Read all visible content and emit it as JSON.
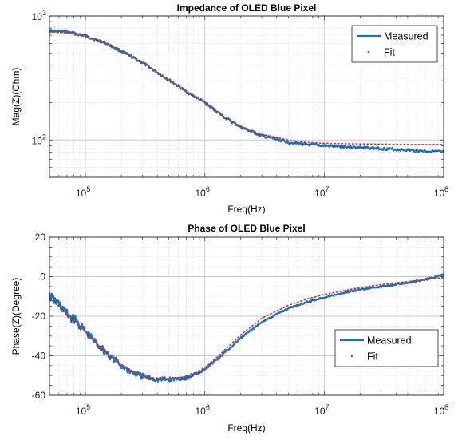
{
  "chart_data": [
    {
      "type": "line",
      "title": "Impedance of OLED Blue Pixel",
      "xlabel": "Freq(Hz)",
      "ylabel": "Mag(Z)(Ohm)",
      "xscale": "log",
      "yscale": "log",
      "xlim": [
        50000,
        100000000
      ],
      "ylim": [
        50,
        1000
      ],
      "grid": true,
      "legend_position": "top-right",
      "x_ticks": [
        {
          "value": 100000,
          "base": "10",
          "exp": "5"
        },
        {
          "value": 1000000,
          "base": "10",
          "exp": "6"
        },
        {
          "value": 10000000,
          "base": "10",
          "exp": "7"
        },
        {
          "value": 100000000,
          "base": "10",
          "exp": "8"
        }
      ],
      "y_ticks": [
        {
          "value": 100,
          "base": "10",
          "exp": "2"
        },
        {
          "value": 1000,
          "base": "10",
          "exp": "3"
        }
      ],
      "series": [
        {
          "name": "Measured",
          "style": "solid",
          "color": "#1f6fb4",
          "x": [
            50000,
            70000,
            100000,
            150000,
            200000,
            300000,
            400000,
            500000,
            700000,
            1000000,
            1500000,
            2000000,
            3000000,
            5000000,
            7000000,
            10000000,
            20000000,
            50000000,
            100000000
          ],
          "y": [
            760,
            745,
            690,
            600,
            520,
            420,
            350,
            305,
            245,
            200,
            150,
            127,
            108,
            96,
            92,
            90,
            87,
            83,
            80
          ]
        },
        {
          "name": "Fit",
          "style": "dotted",
          "color": "#e8271e",
          "x": [
            50000,
            70000,
            100000,
            150000,
            200000,
            300000,
            400000,
            500000,
            700000,
            1000000,
            1500000,
            2000000,
            3000000,
            5000000,
            7000000,
            10000000,
            20000000,
            50000000,
            100000000
          ],
          "y": [
            740,
            735,
            685,
            598,
            518,
            418,
            349,
            305,
            245,
            200,
            151,
            129,
            111,
            100,
            96,
            94,
            93,
            92,
            92
          ]
        }
      ]
    },
    {
      "type": "line",
      "title": "Phase of OLED Blue Pixel",
      "xlabel": "Freq(Hz)",
      "ylabel": "Phase(Z)(Degree)",
      "xscale": "log",
      "xlim": [
        50000,
        100000000
      ],
      "ylim": [
        -60,
        20
      ],
      "grid": true,
      "legend_position": "right",
      "x_ticks": [
        {
          "value": 100000,
          "base": "10",
          "exp": "5"
        },
        {
          "value": 1000000,
          "base": "10",
          "exp": "6"
        },
        {
          "value": 10000000,
          "base": "10",
          "exp": "7"
        },
        {
          "value": 100000000,
          "base": "10",
          "exp": "8"
        }
      ],
      "y_ticks": [
        {
          "value": 20,
          "label": "20"
        },
        {
          "value": 0,
          "label": "0"
        },
        {
          "value": -20,
          "label": "-20"
        },
        {
          "value": -40,
          "label": "-40"
        },
        {
          "value": -60,
          "label": "-60"
        }
      ],
      "series": [
        {
          "name": "Measured",
          "style": "solid",
          "color": "#1f6fb4",
          "x": [
            50000,
            60000,
            70000,
            85000,
            100000,
            130000,
            160000,
            200000,
            250000,
            300000,
            400000,
            500000,
            600000,
            700000,
            850000,
            1000000,
            1200000,
            1500000,
            2000000,
            3000000,
            5000000,
            7000000,
            10000000,
            15000000,
            20000000,
            30000000,
            50000000,
            70000000,
            100000000
          ],
          "y": [
            -10,
            -14,
            -19,
            -23,
            -28,
            -35,
            -40,
            -45,
            -48.5,
            -50.5,
            -52,
            -52,
            -51.5,
            -51,
            -49,
            -46.5,
            -43,
            -38,
            -31,
            -23,
            -16,
            -13,
            -10.5,
            -8,
            -6.5,
            -5,
            -3,
            -1.5,
            1
          ]
        },
        {
          "name": "Fit",
          "style": "dotted",
          "color": "#e8271e",
          "x": [
            50000,
            60000,
            70000,
            85000,
            100000,
            130000,
            160000,
            200000,
            250000,
            300000,
            400000,
            500000,
            600000,
            700000,
            850000,
            1000000,
            1200000,
            1500000,
            2000000,
            3000000,
            5000000,
            7000000,
            10000000,
            15000000,
            20000000,
            30000000,
            50000000,
            70000000,
            100000000
          ],
          "y": [
            -11,
            -15,
            -19.5,
            -23.5,
            -28,
            -35,
            -40,
            -44.5,
            -48,
            -50,
            -51.5,
            -51.5,
            -51,
            -50.5,
            -48.5,
            -46,
            -42,
            -36.5,
            -29.5,
            -21,
            -14.5,
            -11.5,
            -9,
            -7,
            -5.5,
            -4,
            -2.5,
            -1.5,
            -0.5
          ]
        }
      ]
    }
  ]
}
